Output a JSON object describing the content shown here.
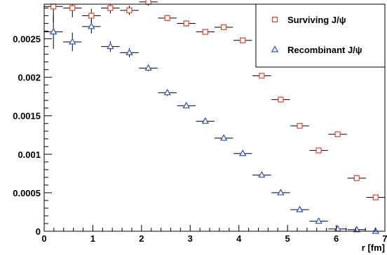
{
  "chart_data": {
    "type": "scatter",
    "title": "",
    "xlabel": "r [fm]",
    "ylabel": "",
    "xlim": [
      0,
      7
    ],
    "ylim": [
      0,
      0.00295
    ],
    "x_ticks": [
      0,
      1,
      2,
      3,
      4,
      5,
      6,
      7
    ],
    "x_tick_labels": [
      "0",
      "1",
      "2",
      "3",
      "4",
      "5",
      "6",
      "7"
    ],
    "y_ticks": [
      0,
      0.0005,
      0.001,
      0.0015,
      0.002,
      0.0025
    ],
    "y_tick_labels": [
      "0",
      "0.0005",
      "0.001",
      "0.0015",
      "0.002",
      "0.0025"
    ],
    "grid": false,
    "legend_position": "top-right",
    "x_bin_halfwidth": 0.19,
    "series": [
      {
        "name": "Surviving J/ψ",
        "marker": "open-square",
        "color": "#e0452a",
        "points": [
          {
            "x": 0.19,
            "y": 0.00292,
            "yerr": 0.0002
          },
          {
            "x": 0.58,
            "y": 0.0029,
            "yerr": 0.00012
          },
          {
            "x": 0.97,
            "y": 0.0028,
            "yerr": 9e-05
          },
          {
            "x": 1.36,
            "y": 0.0029,
            "yerr": 7e-05
          },
          {
            "x": 1.75,
            "y": 0.00287,
            "yerr": 6e-05
          },
          {
            "x": 2.14,
            "y": 0.00298,
            "yerr": 5e-05
          },
          {
            "x": 2.53,
            "y": 0.00277,
            "yerr": 4e-05
          },
          {
            "x": 2.92,
            "y": 0.0027,
            "yerr": 4e-05
          },
          {
            "x": 3.31,
            "y": 0.00259,
            "yerr": 3e-05
          },
          {
            "x": 3.69,
            "y": 0.00265,
            "yerr": 3e-05
          },
          {
            "x": 4.08,
            "y": 0.00248,
            "yerr": 3e-05
          },
          {
            "x": 4.47,
            "y": 0.00202,
            "yerr": 3e-05
          },
          {
            "x": 4.86,
            "y": 0.00171,
            "yerr": 3e-05
          },
          {
            "x": 5.25,
            "y": 0.00137,
            "yerr": 3e-05
          },
          {
            "x": 5.64,
            "y": 0.00105,
            "yerr": 3e-05
          },
          {
            "x": 6.03,
            "y": 0.00126,
            "yerr": 3e-05
          },
          {
            "x": 6.42,
            "y": 0.00069,
            "yerr": 3e-05
          },
          {
            "x": 6.81,
            "y": 0.00044,
            "yerr": 3e-05
          }
        ]
      },
      {
        "name": "Recombinant J/ψ",
        "marker": "open-triangle",
        "color": "#2b4fd6",
        "points": [
          {
            "x": 0.19,
            "y": 0.00259,
            "yerr": 0.00022
          },
          {
            "x": 0.58,
            "y": 0.00246,
            "yerr": 0.00012
          },
          {
            "x": 0.97,
            "y": 0.00266,
            "yerr": 9e-05
          },
          {
            "x": 1.36,
            "y": 0.0024,
            "yerr": 7e-05
          },
          {
            "x": 1.75,
            "y": 0.00232,
            "yerr": 6e-05
          },
          {
            "x": 2.14,
            "y": 0.00212,
            "yerr": 4e-05
          },
          {
            "x": 2.53,
            "y": 0.0018,
            "yerr": 4e-05
          },
          {
            "x": 2.92,
            "y": 0.00163,
            "yerr": 3e-05
          },
          {
            "x": 3.31,
            "y": 0.00143,
            "yerr": 3e-05
          },
          {
            "x": 3.69,
            "y": 0.00121,
            "yerr": 3e-05
          },
          {
            "x": 4.08,
            "y": 0.00101,
            "yerr": 3e-05
          },
          {
            "x": 4.47,
            "y": 0.00073,
            "yerr": 3e-05
          },
          {
            "x": 4.86,
            "y": 0.0005,
            "yerr": 3e-05
          },
          {
            "x": 5.25,
            "y": 0.00028,
            "yerr": 3e-05
          },
          {
            "x": 5.64,
            "y": 0.00013,
            "yerr": 3e-05
          },
          {
            "x": 6.03,
            "y": 3e-05,
            "yerr": 2e-05
          },
          {
            "x": 6.42,
            "y": 2e-05,
            "yerr": 2e-05
          },
          {
            "x": 6.81,
            "y": 0.0,
            "yerr": 2e-05
          }
        ]
      }
    ]
  }
}
